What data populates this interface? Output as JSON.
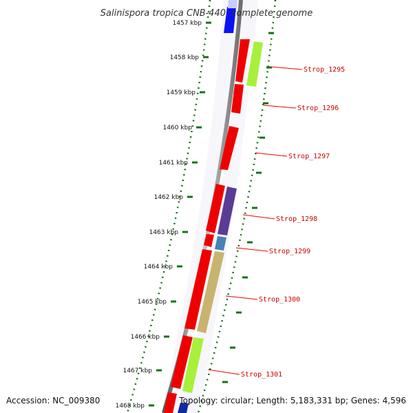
{
  "title": "Salinispora tropica CNB-440, complete genome",
  "footer": {
    "accession": "Accession: NC_009380",
    "topology": "Topology: circular; Length: 5,183,331 bp; Genes: 4,596"
  },
  "ticks": [
    "1457 kbp",
    "1458 kbp",
    "1459 kbp",
    "1460 kbp",
    "1461 kbp",
    "1462 kbp",
    "1463 kbp",
    "1464 kbp",
    "1465 kbp",
    "1466 kbp",
    "1467 kbp",
    "1468 kbp"
  ],
  "genes": [
    {
      "label": "Strop_1295"
    },
    {
      "label": "Strop_1296"
    },
    {
      "label": "Strop_1297"
    },
    {
      "label": "Strop_1298"
    },
    {
      "label": "Strop_1299"
    },
    {
      "label": "Strop_1300"
    },
    {
      "label": "Strop_1301"
    }
  ],
  "colors": {
    "cds": "#ee0000",
    "cog_green": "#a8f03c",
    "cog_purple": "#5a3c96",
    "cog_blue": "#4682b4",
    "cog_khaki": "#c8b46e",
    "top_blue": "#0a14f0",
    "tick_green": "#157015",
    "backbone": "#8c8c8c"
  }
}
